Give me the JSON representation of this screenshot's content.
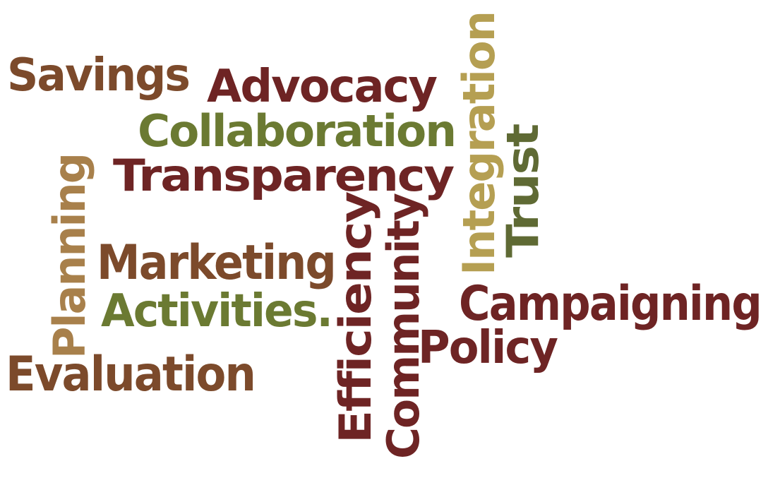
{
  "colors": {
    "dark_red": "#6e2424",
    "brown": "#7c4a2b",
    "olive_green": "#6b7a32",
    "gold": "#b59f52",
    "dark_olive": "#5f6a34",
    "tan": "#a8804b"
  },
  "words": {
    "savings": "Savings",
    "advocacy": "Advocacy",
    "collaboration": "Collaboration",
    "transparency": "Transparency",
    "planning": "Planning",
    "marketing": "Marketing",
    "activities": "Activities.",
    "evaluation": "Evaluation",
    "efficiency": "Efficiency",
    "community": "Community",
    "integration": "Integration",
    "trust": "Trust",
    "campaigning": "Campaigning",
    "policy": "Policy"
  }
}
